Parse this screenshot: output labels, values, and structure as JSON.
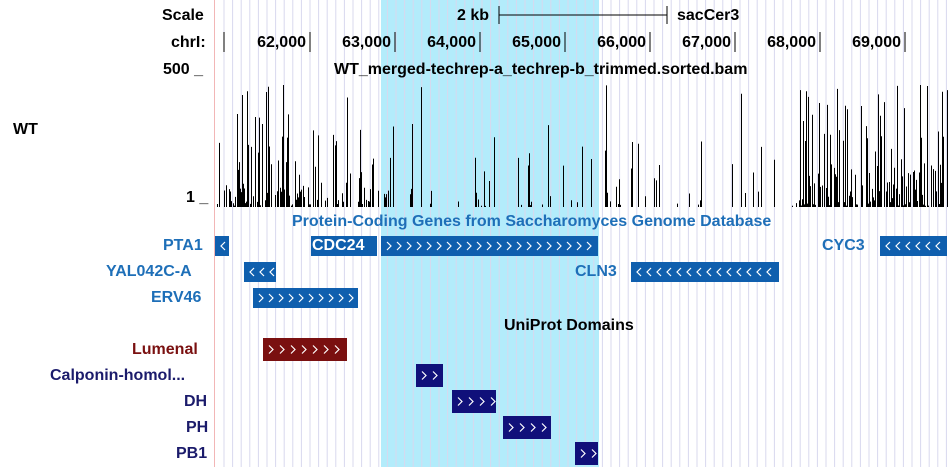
{
  "ruler": {
    "scale_label": "Scale",
    "scale_bar_label": "2 kb",
    "assembly": "sacCer3",
    "chrom_label": "chrI:",
    "ticks": [
      "62,000",
      "63,000",
      "64,000",
      "65,000",
      "66,000",
      "67,000",
      "68,000",
      "69,000"
    ]
  },
  "track_wt": {
    "sample_label": "WT",
    "title": "WT_merged-techrep-a_techrep-b_trimmed.sorted.bam",
    "y_max": "500 _",
    "y_min": "1 _"
  },
  "genes_track": {
    "title": "Protein-Coding Genes from Saccharomyces Genome Database",
    "label_color": "#1e6fb8",
    "feature_color": "#0f5fae",
    "genes": [
      "PTA1",
      "YAL042C-A",
      "ERV46",
      "CDC24",
      "CLN3",
      "CYC3"
    ]
  },
  "uniprot_track": {
    "title": "UniProt Domains",
    "label_color": "#1b1b6b",
    "feature_color": "#10107a",
    "lumenal_label": "Lumenal",
    "lumenal_color": "#7a1010",
    "domains": [
      "Calponin-homol...",
      "DH",
      "PH",
      "PB1"
    ]
  },
  "colors": {
    "highlight": "#b3ecfb",
    "grid_line": "#d8d8ee",
    "edge_line": "#f2b6b6"
  }
}
